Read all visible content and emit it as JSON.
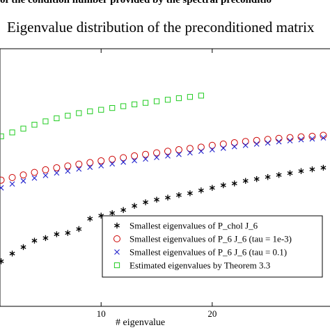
{
  "header_cut_text": "of the condition number provided by the spectral preconditio",
  "chart_data": {
    "type": "scatter",
    "title": "Eigenvalue distribution of the preconditioned matrix",
    "xlabel": "# eigenvalue",
    "ylabel": "",
    "xlim": [
      0.9,
      30.6
    ],
    "ylim": [
      0.0,
      1.0
    ],
    "x_ticks": [
      10,
      20
    ],
    "x_tick_labels": [
      "10",
      "20"
    ],
    "grid": false,
    "legend_position": "lower-right",
    "series": [
      {
        "name": "Smallest eigenvalues of P_chol J_6",
        "marker": "asterisk",
        "color": "#000000",
        "x": [
          1,
          2,
          3,
          4,
          5,
          6,
          7,
          8,
          9,
          10,
          11,
          12,
          13,
          14,
          15,
          16,
          17,
          18,
          19,
          20,
          21,
          22,
          23,
          24,
          25,
          26,
          27,
          28,
          29,
          30
        ],
        "y": [
          0.175,
          0.205,
          0.23,
          0.255,
          0.265,
          0.28,
          0.285,
          0.3,
          0.34,
          0.352,
          0.362,
          0.374,
          0.39,
          0.404,
          0.414,
          0.422,
          0.432,
          0.439,
          0.45,
          0.46,
          0.47,
          0.477,
          0.487,
          0.494,
          0.502,
          0.51,
          0.517,
          0.525,
          0.532,
          0.538
        ]
      },
      {
        "name": "Smallest eigenvalues of P_6 J_6 (tau = 1e-3)",
        "marker": "circle",
        "color": "#cc0000",
        "x": [
          1,
          2,
          3,
          4,
          5,
          6,
          7,
          8,
          9,
          10,
          11,
          12,
          13,
          14,
          15,
          16,
          17,
          18,
          19,
          20,
          21,
          22,
          23,
          24,
          25,
          26,
          27,
          28,
          29,
          30
        ],
        "y": [
          0.49,
          0.5,
          0.51,
          0.52,
          0.53,
          0.538,
          0.545,
          0.552,
          0.558,
          0.565,
          0.571,
          0.577,
          0.584,
          0.59,
          0.596,
          0.602,
          0.608,
          0.613,
          0.618,
          0.625,
          0.63,
          0.635,
          0.64,
          0.644,
          0.648,
          0.652,
          0.655,
          0.658,
          0.66,
          0.664
        ]
      },
      {
        "name": "Smallest eigenvalues of P_6 J_6 (tau = 0.1)",
        "marker": "x",
        "color": "#1f1fcc",
        "x": [
          1,
          2,
          3,
          4,
          5,
          6,
          7,
          8,
          9,
          10,
          11,
          12,
          13,
          14,
          15,
          16,
          17,
          18,
          19,
          20,
          21,
          22,
          23,
          24,
          25,
          26,
          27,
          28,
          29,
          30
        ],
        "y": [
          0.46,
          0.475,
          0.487,
          0.498,
          0.508,
          0.518,
          0.525,
          0.533,
          0.54,
          0.546,
          0.553,
          0.56,
          0.566,
          0.572,
          0.578,
          0.584,
          0.59,
          0.596,
          0.602,
          0.608,
          0.614,
          0.62,
          0.625,
          0.63,
          0.634,
          0.639,
          0.643,
          0.647,
          0.65,
          0.654
        ]
      },
      {
        "name": "Estimated eigenvalues by Theorem 3.3",
        "marker": "square",
        "color": "#22cc22",
        "x": [
          1,
          2,
          3,
          4,
          5,
          6,
          7,
          8,
          9,
          10,
          11,
          12,
          13,
          14,
          15,
          16,
          17,
          18,
          19
        ],
        "y": [
          0.66,
          0.675,
          0.69,
          0.705,
          0.718,
          0.73,
          0.74,
          0.75,
          0.757,
          0.763,
          0.77,
          0.777,
          0.784,
          0.79,
          0.796,
          0.802,
          0.808,
          0.813,
          0.818
        ]
      }
    ]
  }
}
